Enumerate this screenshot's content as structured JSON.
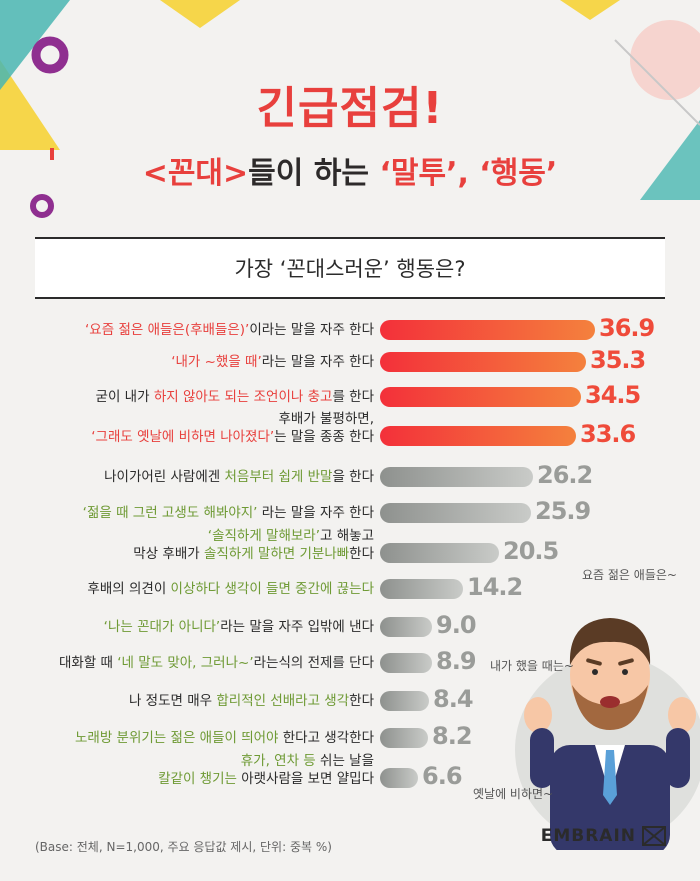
{
  "header": {
    "title": "긴급점검!",
    "subtitle_pre": "<꼰대>",
    "subtitle_mid": "들이 하는 ",
    "subtitle_post": "‘말투’, ‘행동’"
  },
  "question": "가장 ‘꼰대스러운’ 행동은?",
  "chart_data": {
    "type": "bar",
    "orientation": "horizontal",
    "unit": "%",
    "categories": [
      "‘요즘 젊은 애들은(후배들은)’이라는 말을 자주 한다",
      "‘내가 ~했을 때’라는 말을 자주 한다",
      "굳이 내가 하지 않아도 되는 조언이나 충고를 한다",
      "후배가 불평하면, ‘그래도 옛날에 비하면 나아졌다’는 말을 종종 한다",
      "나이가어린 사람에겐 처음부터 쉽게 반말을 한다",
      "‘젊을 때 그런 고생도 해봐야지’ 라는 말을 자주 한다",
      "‘솔직하게 말해보라’고 해놓고 막상 후배가 솔직하게 말하면 기분나빠한다",
      "후배의 의견이 이상하다 생각이 들면 중간에 끊는다",
      "‘나는 꼰대가 아니다’라는 말을 자주 입밖에 낸다",
      "대화할 때 ‘네 말도 맞아, 그러나~’라는식의 전제를 단다",
      "나 정도면 매우 합리적인 선배라고 생각한다",
      "노래방 분위기는 젊은 애들이 띄어야 한다고 생각한다",
      "휴가, 연차 등 쉬는 날을 칼같이 챙기는 아랫사람을 보면 얄밉다"
    ],
    "values": [
      36.9,
      35.3,
      34.5,
      33.6,
      26.2,
      25.9,
      20.5,
      14.2,
      9.0,
      8.9,
      8.4,
      8.2,
      6.6
    ],
    "value_labels": [
      "36.9",
      "35.3",
      "34.5",
      "33.6",
      "26.2",
      "25.9",
      "20.5",
      "14.2",
      "9.0",
      "8.9",
      "8.4",
      "8.2",
      "6.6"
    ],
    "highlighted_top": 4,
    "colors": {
      "highlight": "#f3303a",
      "highlight_end": "#f4813d",
      "other": "#8e918e",
      "other_end": "#c9cbc8"
    }
  },
  "rows": [
    {
      "parts": [
        [
          "‘요즘 젊은 애들은(후배들은)’",
          "red"
        ],
        [
          "이라는 말을 자주 한다",
          ""
        ]
      ]
    },
    {
      "parts": [
        [
          "‘내가 ~했을 때’",
          "red"
        ],
        [
          "라는 말을 자주 한다",
          ""
        ]
      ]
    },
    {
      "parts": [
        [
          "굳이 내가 ",
          ""
        ],
        [
          "하지 않아도 되는 조언이나 충고",
          "red"
        ],
        [
          "를 한다",
          ""
        ]
      ]
    },
    {
      "line1": [
        [
          "후배가 불평하면,",
          ""
        ]
      ],
      "parts": [
        [
          "‘그래도 옛날에 비하면 나아졌다’",
          "red"
        ],
        [
          "는 말을 종종 한다",
          ""
        ]
      ]
    },
    {
      "parts": [
        [
          "나이가어린 사람에겐 ",
          ""
        ],
        [
          "처음부터 쉽게 반말",
          "green"
        ],
        [
          "을 한다",
          ""
        ]
      ]
    },
    {
      "parts": [
        [
          "‘젊을 때 그런 고생도 해봐야지’",
          "green"
        ],
        [
          " 라는 말을 자주 한다",
          ""
        ]
      ]
    },
    {
      "line1": [
        [
          "‘솔직하게 말해보라’",
          "green"
        ],
        [
          "고 해놓고",
          ""
        ]
      ],
      "parts": [
        [
          "막상 후배가 ",
          ""
        ],
        [
          "솔직하게 말하면 기분나빠",
          "green"
        ],
        [
          "한다",
          ""
        ]
      ]
    },
    {
      "parts": [
        [
          "후배의 의견이 ",
          ""
        ],
        [
          "이상하다 생각이 들면 중간에 끊는다",
          "green"
        ]
      ]
    },
    {
      "parts": [
        [
          "‘나는 꼰대가 아니다’",
          "green"
        ],
        [
          "라는 말을 자주 입밖에 낸다",
          ""
        ]
      ]
    },
    {
      "parts": [
        [
          "대화할 때 ",
          ""
        ],
        [
          "‘네 말도 맞아, 그러나~’",
          "green"
        ],
        [
          "라는식의 전제를 단다",
          ""
        ]
      ]
    },
    {
      "parts": [
        [
          "나 정도면 매우 ",
          ""
        ],
        [
          "합리적인 선배라고 생각",
          "green"
        ],
        [
          "한다",
          ""
        ]
      ]
    },
    {
      "parts": [
        [
          "노래방 분위기는 젊은 애들이 띄어야",
          "green"
        ],
        [
          " 한다고 생각한다",
          ""
        ]
      ]
    },
    {
      "line1": [
        [
          "휴가, 연차 등",
          "green"
        ],
        [
          " 쉬는 날을",
          ""
        ]
      ],
      "parts": [
        [
          "칼같이 챙기는",
          "green"
        ],
        [
          " 아랫사람을 보면 얄밉다",
          ""
        ]
      ]
    }
  ],
  "bubbles": [
    "요즘 젊은 애들은~",
    "내가 했을 때는~",
    "옛날에 비하면~"
  ],
  "footnote": "(Base: 전체, N=1,000, 주요 응답값 제시, 단위: 중복 %)",
  "brand": "EMBRAIN"
}
